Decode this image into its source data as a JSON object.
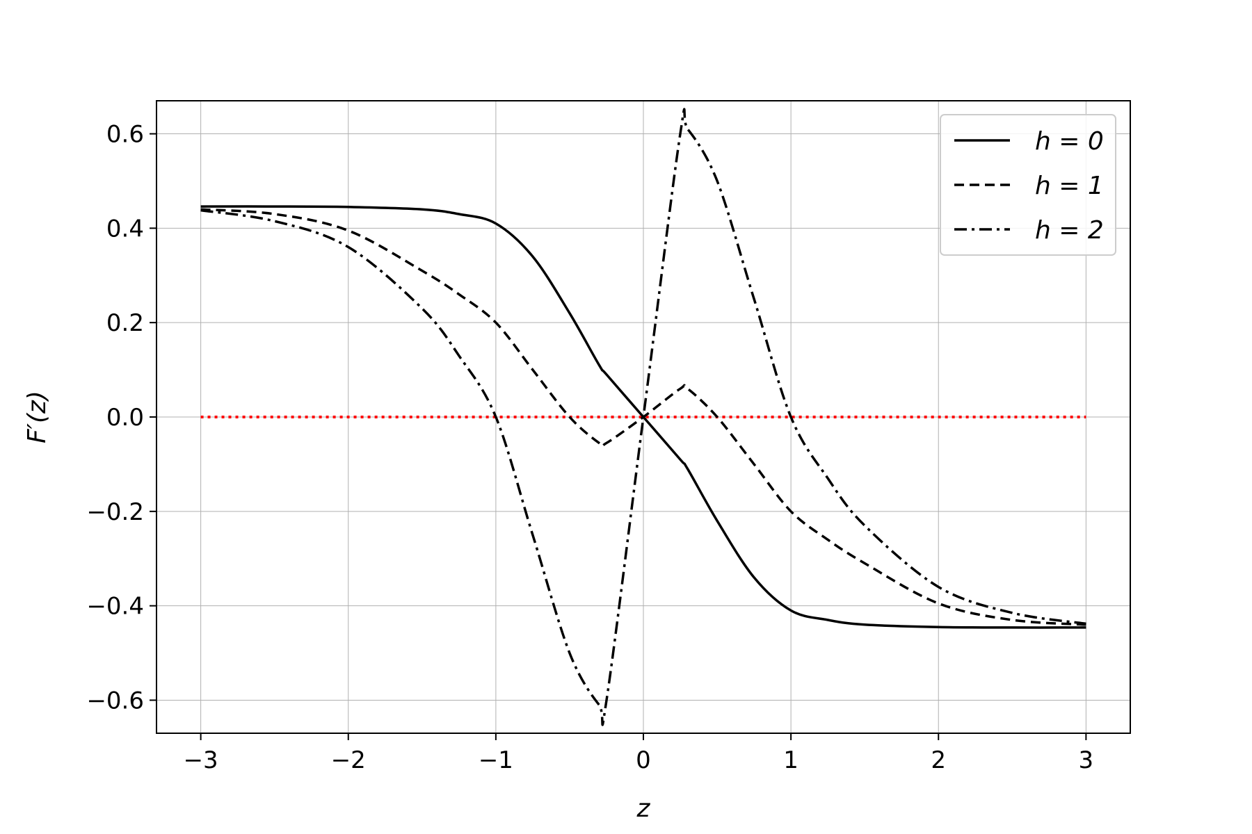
{
  "chart_data": {
    "type": "line",
    "title": "",
    "xlabel": "z",
    "ylabel": "F′(z)",
    "xlim": [
      -3.3,
      3.3
    ],
    "ylim": [
      -0.67,
      0.67
    ],
    "xticks": [
      -3,
      -2,
      -1,
      0,
      1,
      2,
      3
    ],
    "xtick_labels": [
      "−3",
      "−2",
      "−1",
      "0",
      "1",
      "2",
      "3"
    ],
    "yticks": [
      -0.6,
      -0.4,
      -0.2,
      0.0,
      0.2,
      0.4,
      0.6
    ],
    "ytick_labels": [
      "−0.6",
      "−0.4",
      "−0.2",
      "0.0",
      "0.2",
      "0.4",
      "0.6"
    ],
    "grid": true,
    "legend_position": "top-right",
    "x": [
      -3.0,
      -2.5,
      -2.0,
      -1.5,
      -1.25,
      -1.0,
      -0.75,
      -0.5,
      -0.3,
      -0.25,
      0.0,
      0.25,
      0.3,
      0.5,
      0.75,
      1.0,
      1.25,
      1.5,
      2.0,
      2.5,
      3.0
    ],
    "series": [
      {
        "name": "h = 0",
        "style": "solid",
        "color": "#000000",
        "values": [
          0.446,
          0.446,
          0.445,
          0.44,
          0.43,
          0.41,
          0.34,
          0.22,
          0.11,
          0.09,
          0.0,
          -0.09,
          -0.11,
          -0.22,
          -0.34,
          -0.41,
          -0.43,
          -0.44,
          -0.445,
          -0.446,
          -0.446
        ]
      },
      {
        "name": "h = 1",
        "style": "dashed",
        "color": "#000000",
        "values": [
          0.44,
          0.43,
          0.395,
          0.31,
          0.26,
          0.2,
          0.1,
          0.0,
          -0.055,
          -0.055,
          0.0,
          0.06,
          0.06,
          0.0,
          -0.1,
          -0.2,
          -0.26,
          -0.31,
          -0.395,
          -0.43,
          -0.44
        ]
      },
      {
        "name": "h = 2",
        "style": "dashdot",
        "color": "#000000",
        "values": [
          0.438,
          0.415,
          0.36,
          0.23,
          0.13,
          0.0,
          -0.25,
          -0.5,
          -0.61,
          -0.6,
          0.0,
          0.6,
          0.61,
          0.5,
          0.25,
          0.0,
          -0.13,
          -0.23,
          -0.36,
          -0.415,
          -0.438
        ]
      },
      {
        "style": "dotted",
        "color": "#ff0000",
        "values": [
          0,
          0,
          0,
          0,
          0,
          0,
          0,
          0,
          0,
          0,
          0,
          0,
          0,
          0,
          0,
          0,
          0,
          0,
          0,
          0,
          0
        ]
      }
    ]
  }
}
